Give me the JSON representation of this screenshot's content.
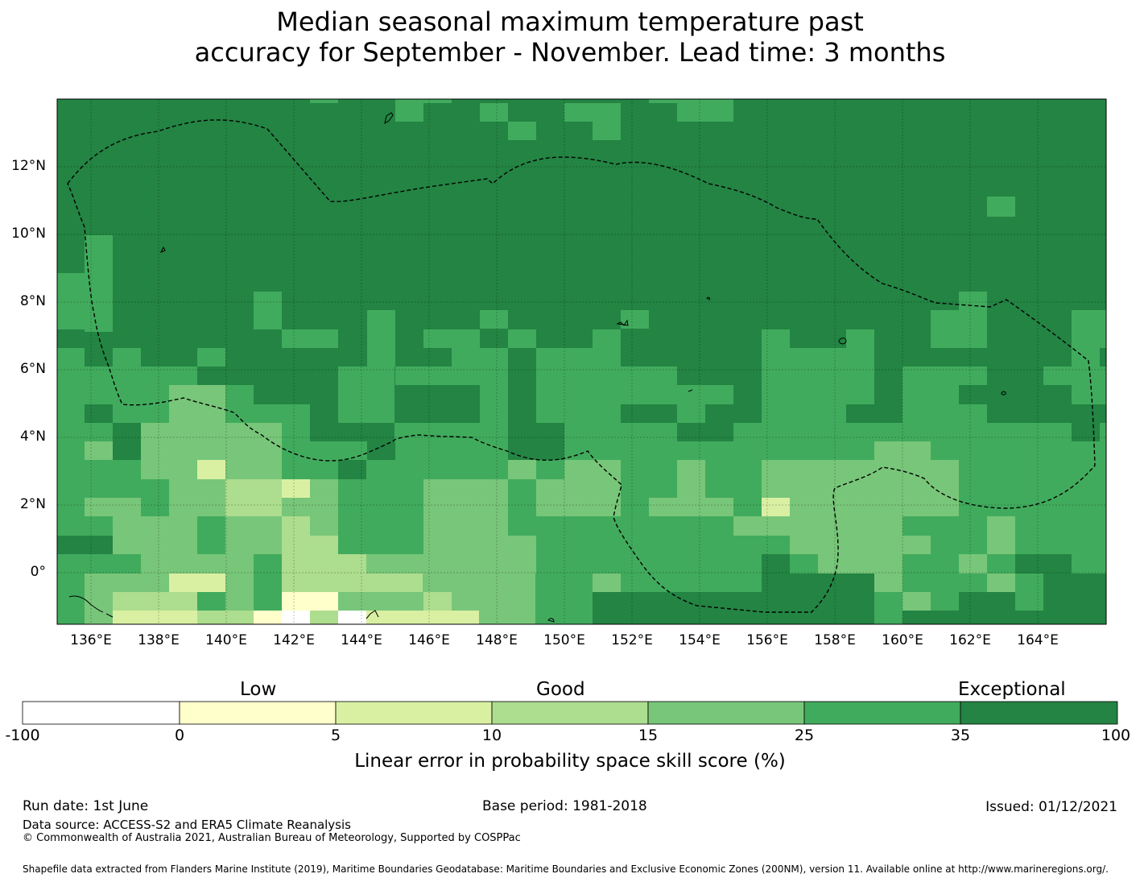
{
  "title": {
    "line1": "Median seasonal maximum temperature past",
    "line2": "accuracy for September - November. Lead time: 3 months"
  },
  "map": {
    "lon_range": [
      135,
      166
    ],
    "lat_range": [
      -1.5,
      14
    ],
    "lon_ticks": [
      "136°E",
      "138°E",
      "140°E",
      "142°E",
      "144°E",
      "146°E",
      "148°E",
      "150°E",
      "152°E",
      "154°E",
      "156°E",
      "158°E",
      "160°E",
      "162°E",
      "164°E"
    ],
    "lat_ticks": [
      "12°N",
      "10°N",
      "8°N",
      "6°N",
      "4°N",
      "2°N",
      "0°"
    ],
    "grid": "on",
    "boundary": "dashed EEZ outline",
    "dominant_category": "35 to 100"
  },
  "colorbar": {
    "headings": {
      "low": "Low",
      "good": "Good",
      "exceptional": "Exceptional"
    },
    "ticks": [
      "-100",
      "0",
      "5",
      "10",
      "15",
      "25",
      "35",
      "100"
    ],
    "colors": [
      "#ffffff",
      "#ffffcc",
      "#d9f0a3",
      "#addd8e",
      "#78c679",
      "#41ab5d",
      "#238443"
    ],
    "label": "Linear error in probability space skill score (%)"
  },
  "footer": {
    "run_date": "Run date: 1st June",
    "base_period": "Base period: 1981-2018",
    "issued": "Issued: 01/12/2021",
    "data_source": "Data source: ACCESS-S2 and ERA5 Climate Reanalysis",
    "copyright": "© Commonwealth of Australia 2021, Australian Bureau of Meteorology, Supported by COSPPac",
    "shapefile": "Shapefile data extracted from Flanders Marine Institute (2019), Maritime Boundaries Geodatabase: Maritime Boundaries and Exclusive Economic Zones (200NM), version 11. Available online at http://www.marineregions.org/."
  }
}
